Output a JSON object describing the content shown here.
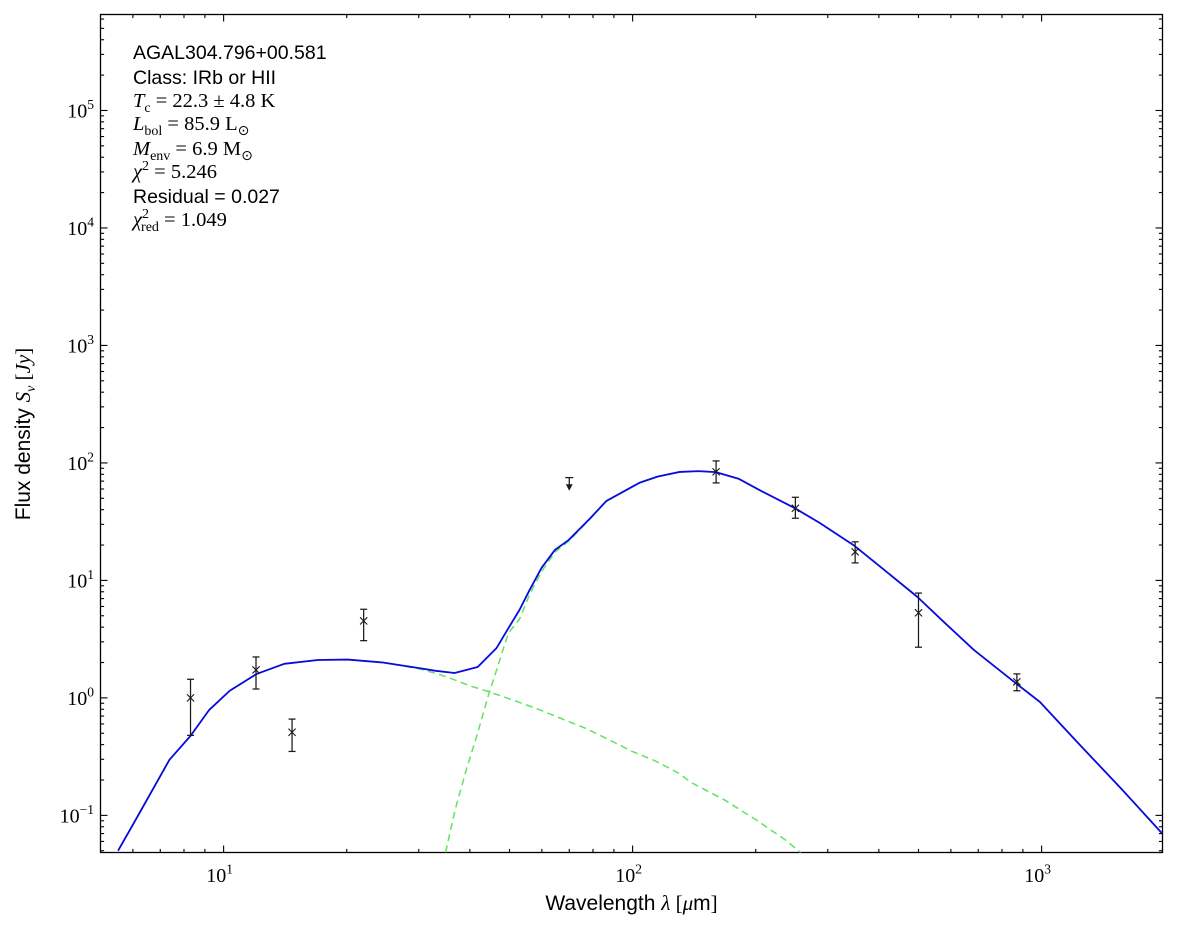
{
  "chart_data": {
    "type": "line+scatter",
    "description": "Spectral energy distribution (SED) fit: two-component greybody model (green dashed components, blue total) with photometric data points and one upper limit",
    "xlabel": "Wavelength λ [μm]",
    "ylabel": "Flux density Sν [Jy]",
    "x_axis": {
      "scale": "log",
      "min": 5,
      "max": 1975,
      "major_ticks": [
        10,
        100,
        1000
      ],
      "tick_label_exponents": [
        "1",
        "2",
        "3"
      ]
    },
    "y_axis": {
      "scale": "log",
      "min": 0.0483,
      "max": 656000,
      "major_ticks": [
        0.1,
        1,
        10,
        100,
        1000,
        10000,
        100000
      ],
      "tick_label_exponents": [
        "−1",
        "0",
        "1",
        "2",
        "3",
        "4",
        "5"
      ]
    },
    "grid": false,
    "legend": "none",
    "colors": {
      "total_model": "#0a0ae0",
      "components": "#5fe45f",
      "data": "#1a1a1a",
      "axes": "#000000"
    },
    "series": [
      {
        "name": "total-model",
        "style": "solid",
        "color": "#0a0ae0",
        "points": [
          [
            5.52,
            0.05
          ],
          [
            6.23,
            0.105
          ],
          [
            7.37,
            0.297
          ],
          [
            8.3,
            0.475
          ],
          [
            9.22,
            0.79
          ],
          [
            10.35,
            1.15
          ],
          [
            12.05,
            1.6
          ],
          [
            14.07,
            1.95
          ],
          [
            17.0,
            2.1
          ],
          [
            20.1,
            2.12
          ],
          [
            24.5,
            2.0
          ],
          [
            29.8,
            1.8
          ],
          [
            33.0,
            1.7
          ],
          [
            36.7,
            1.63
          ],
          [
            41.8,
            1.83
          ],
          [
            46.5,
            2.66
          ],
          [
            49.4,
            3.79
          ],
          [
            52.9,
            5.61
          ],
          [
            56.0,
            8.3
          ],
          [
            59.9,
            12.8
          ],
          [
            64.6,
            18.2
          ],
          [
            69.8,
            22.1
          ],
          [
            78.5,
            33.4
          ],
          [
            86.3,
            47.5
          ],
          [
            103.8,
            67.6
          ],
          [
            115,
            76.5
          ],
          [
            130.3,
            83.8
          ],
          [
            145,
            85.1
          ],
          [
            159.7,
            83.5
          ],
          [
            182,
            73.1
          ],
          [
            204,
            58.9
          ],
          [
            248.7,
            41.4
          ],
          [
            286.6,
            30.9
          ],
          [
            348.6,
            19.7
          ],
          [
            412,
            12.3
          ],
          [
            496.8,
            7.24
          ],
          [
            576.5,
            4.43
          ],
          [
            683,
            2.56
          ],
          [
            863,
            1.34
          ],
          [
            990,
            0.925
          ],
          [
            1240,
            0.398
          ],
          [
            1560,
            0.171
          ],
          [
            1965,
            0.071
          ]
        ]
      },
      {
        "name": "warm-component",
        "style": "dashed",
        "color": "#5fe45f",
        "points": [
          [
            5.52,
            0.05
          ],
          [
            6.23,
            0.105
          ],
          [
            7.37,
            0.297
          ],
          [
            8.3,
            0.475
          ],
          [
            9.22,
            0.79
          ],
          [
            10.35,
            1.15
          ],
          [
            12.05,
            1.6
          ],
          [
            14.07,
            1.95
          ],
          [
            17.0,
            2.1
          ],
          [
            20.1,
            2.12
          ],
          [
            24.5,
            2.0
          ],
          [
            29.8,
            1.78
          ],
          [
            33.0,
            1.62
          ],
          [
            36.4,
            1.44
          ],
          [
            39.9,
            1.27
          ],
          [
            44.5,
            1.13
          ],
          [
            52.2,
            0.93
          ],
          [
            59.4,
            0.79
          ],
          [
            67.4,
            0.66
          ],
          [
            76.8,
            0.55
          ],
          [
            87.6,
            0.44
          ],
          [
            99.8,
            0.35
          ],
          [
            113.8,
            0.29
          ],
          [
            129.2,
            0.23
          ],
          [
            139.2,
            0.19
          ],
          [
            168,
            0.135
          ],
          [
            200,
            0.092
          ],
          [
            236,
            0.062
          ],
          [
            258,
            0.048
          ]
        ]
      },
      {
        "name": "cold-component",
        "style": "dashed",
        "color": "#5fe45f",
        "points": [
          [
            34.9,
            0.0485
          ],
          [
            36.8,
            0.111
          ],
          [
            39.2,
            0.244
          ],
          [
            41.8,
            0.503
          ],
          [
            44.2,
            1.0
          ],
          [
            46.6,
            1.77
          ],
          [
            48.8,
            2.94
          ],
          [
            49.7,
            3.57
          ],
          [
            52.9,
            4.68
          ],
          [
            56.0,
            7.6
          ],
          [
            59.9,
            11.9
          ],
          [
            64.6,
            17.4
          ],
          [
            69.8,
            21.6
          ],
          [
            78.5,
            33.0
          ],
          [
            86.3,
            47.5
          ],
          [
            103.8,
            67.6
          ],
          [
            115,
            76.5
          ],
          [
            130.3,
            83.8
          ],
          [
            145,
            85.1
          ],
          [
            159.7,
            83.5
          ],
          [
            182,
            73.1
          ],
          [
            204,
            58.9
          ],
          [
            248.7,
            41.4
          ],
          [
            286.6,
            30.9
          ],
          [
            348.6,
            19.7
          ],
          [
            412,
            12.3
          ],
          [
            496.8,
            7.24
          ],
          [
            576.5,
            4.43
          ],
          [
            683,
            2.56
          ],
          [
            863,
            1.34
          ],
          [
            990,
            0.925
          ],
          [
            1240,
            0.398
          ],
          [
            1560,
            0.171
          ],
          [
            1965,
            0.071
          ]
        ]
      }
    ],
    "data_points": [
      {
        "wavelength_um": 8.3,
        "flux_jy": 1.0,
        "err_plus": 0.44,
        "err_minus": 0.52
      },
      {
        "wavelength_um": 12.0,
        "flux_jy": 1.73,
        "err_plus": 0.5,
        "err_minus": 0.54
      },
      {
        "wavelength_um": 14.7,
        "flux_jy": 0.51,
        "err_plus": 0.15,
        "err_minus": 0.16
      },
      {
        "wavelength_um": 22.0,
        "flux_jy": 4.52,
        "err_plus": 1.16,
        "err_minus": 1.45
      },
      {
        "wavelength_um": 160,
        "flux_jy": 84.0,
        "err_plus": 20.0,
        "err_minus": 16.4
      },
      {
        "wavelength_um": 250,
        "flux_jy": 41.1,
        "err_plus": 9.9,
        "err_minus": 7.3
      },
      {
        "wavelength_um": 350,
        "flux_jy": 17.5,
        "err_plus": 3.8,
        "err_minus": 3.4
      },
      {
        "wavelength_um": 500,
        "flux_jy": 5.3,
        "err_plus": 2.5,
        "err_minus": 2.6
      },
      {
        "wavelength_um": 870,
        "flux_jy": 1.37,
        "err_plus": 0.23,
        "err_minus": 0.22
      }
    ],
    "upper_limits": [
      {
        "wavelength_um": 70,
        "flux_jy": 75,
        "arrow_to_jy": 58
      }
    ]
  },
  "annotation": {
    "source_name": "AGAL304.796+00.581",
    "class_line": "Class: IRb or HII",
    "tc": "22.3 ± 4.8 K",
    "lbol": "85.9 L☉",
    "menv": "6.9 M☉",
    "chi2": "5.246",
    "residual": "0.027",
    "chi2_red": "1.049",
    "lines": [
      {
        "font": "sans",
        "parts": [
          {
            "t": "AGAL304.796+00.581"
          }
        ]
      },
      {
        "font": "sans",
        "parts": [
          {
            "t": "Class: IRb or HII"
          }
        ]
      },
      {
        "font": "serif",
        "parts": [
          {
            "t": "T",
            "i": 1
          },
          {
            "t": "c",
            "sub": 1
          },
          {
            "t": " = 22.3 ± 4.8 K"
          }
        ]
      },
      {
        "font": "serif",
        "parts": [
          {
            "t": "L",
            "i": 1
          },
          {
            "t": "bol",
            "sub": 1
          },
          {
            "t": " = 85.9 L"
          },
          {
            "t": "⊙",
            "sub": 1,
            "sym": 1
          }
        ]
      },
      {
        "font": "serif",
        "parts": [
          {
            "t": "M",
            "i": 1
          },
          {
            "t": "env",
            "sub": 1
          },
          {
            "t": " = 6.9 M"
          },
          {
            "t": "⊙",
            "sub": 1,
            "sym": 1
          }
        ]
      },
      {
        "font": "serif",
        "parts": [
          {
            "t": "χ",
            "i": 1
          },
          {
            "t": "2",
            "sup": 1
          },
          {
            "t": " = 5.246"
          }
        ]
      },
      {
        "font": "sans",
        "parts": [
          {
            "t": "Residual = 0.027"
          }
        ]
      },
      {
        "font": "serif",
        "parts": [
          {
            "t": "χ",
            "i": 1
          },
          {
            "t": "2",
            "sup": 1
          },
          {
            "t": "red",
            "sub": 1,
            "dx": -8
          },
          {
            "t": " = 1.049"
          }
        ]
      }
    ]
  },
  "axis_labels": {
    "x": {
      "parts": [
        {
          "t": "Wavelength ",
          "f": "sans"
        },
        {
          "t": "λ",
          "f": "si"
        },
        {
          "t": " [",
          "f": "serif"
        },
        {
          "t": "μ",
          "f": "si"
        },
        {
          "t": "m",
          "f": "sans"
        },
        {
          "t": "]",
          "f": "serif"
        }
      ]
    },
    "y": {
      "parts": [
        {
          "t": "Flux density ",
          "f": "sans"
        },
        {
          "t": "S",
          "f": "si"
        },
        {
          "t": "ν",
          "f": "si",
          "sub": 1
        },
        {
          "t": " [",
          "f": "serif"
        },
        {
          "t": "Jy",
          "f": "si"
        },
        {
          "t": "]",
          "f": "serif"
        }
      ]
    }
  }
}
